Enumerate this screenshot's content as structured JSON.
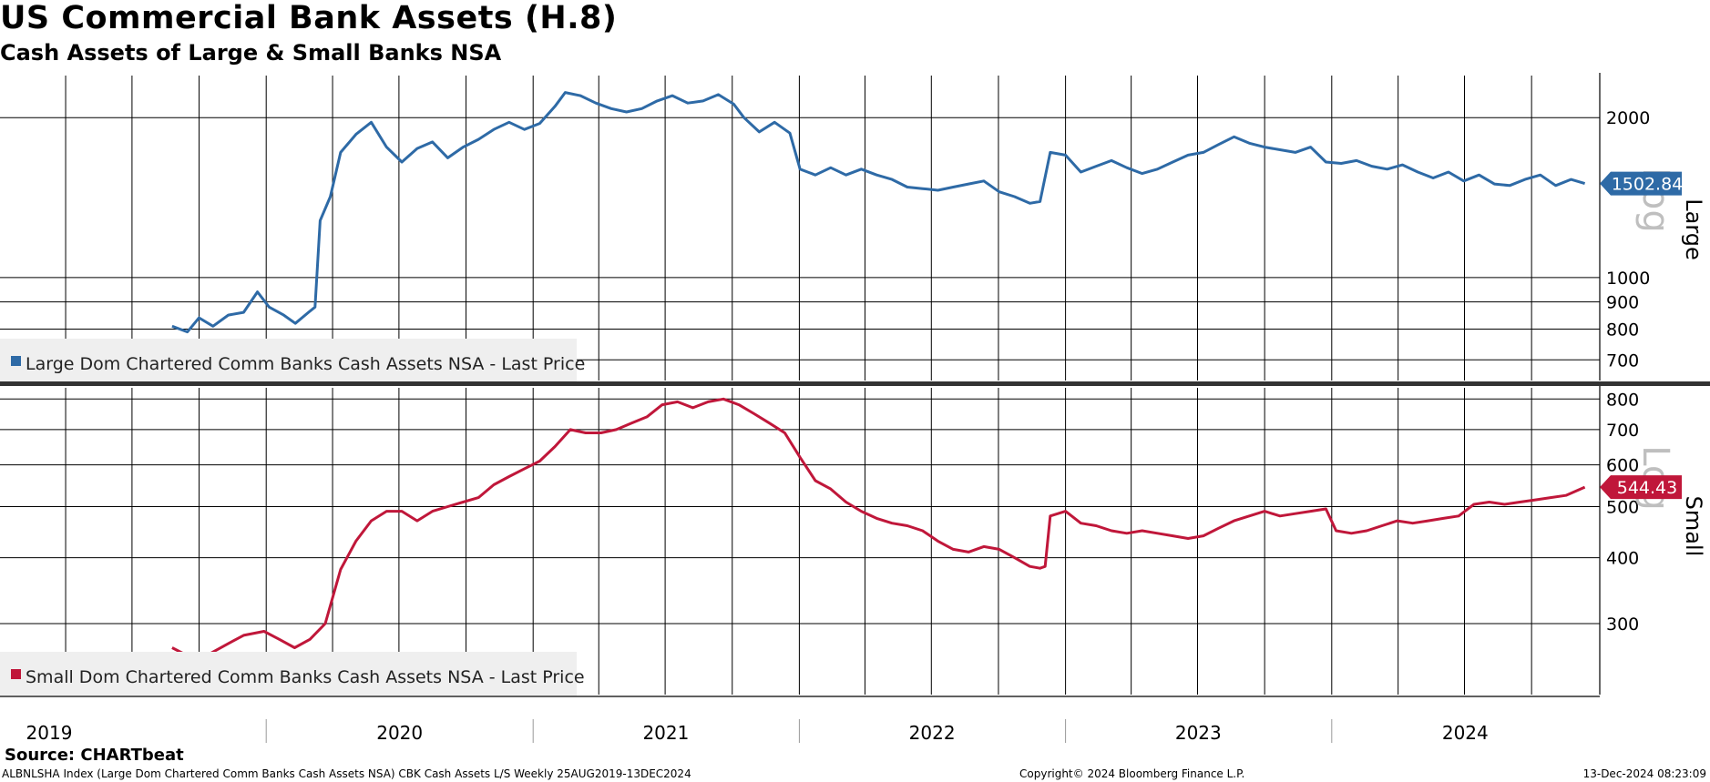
{
  "title": "US Commercial Bank Assets (H.8)",
  "subtitle": "Cash Assets of Large & Small Banks NSA",
  "source": "Source: CHARTbeat",
  "footer": {
    "left": "ALBNLSHA Index (Large Dom Chartered Comm Banks Cash Assets NSA) CBK Cash Assets L/S  Weekly 25AUG2019-13DEC2024",
    "middle": "Copyright© 2024 Bloomberg Finance L.P.",
    "right": "13-Dec-2024 08:23:09"
  },
  "colors": {
    "large": "#2e6aa6",
    "small": "#c0173a"
  },
  "chart_data": [
    {
      "type": "line",
      "panel": "top",
      "axis_title": "Large",
      "scale": "log",
      "scale_watermark": "Log",
      "ylim": [
        640,
        2400
      ],
      "yticks": [
        700,
        800,
        900,
        1000,
        2000
      ],
      "last_value_label": "1502.84",
      "legend": "Large Dom Chartered Comm Banks Cash Assets NSA - Last Price",
      "legend_position": "bottom-left",
      "series": [
        {
          "name": "Large Dom Chartered Comm Banks Cash Assets NSA - Last Price",
          "points": [
            [
              "2019-08-25",
              810
            ],
            [
              "2019-09-15",
              790
            ],
            [
              "2019-10-01",
              840
            ],
            [
              "2019-10-20",
              810
            ],
            [
              "2019-11-10",
              850
            ],
            [
              "2019-12-01",
              860
            ],
            [
              "2019-12-20",
              940
            ],
            [
              "2020-01-05",
              880
            ],
            [
              "2020-01-25",
              850
            ],
            [
              "2020-02-10",
              820
            ],
            [
              "2020-02-28",
              860
            ],
            [
              "2020-03-08",
              880
            ],
            [
              "2020-03-15",
              1280
            ],
            [
              "2020-03-29",
              1420
            ],
            [
              "2020-04-12",
              1720
            ],
            [
              "2020-05-03",
              1860
            ],
            [
              "2020-05-24",
              1960
            ],
            [
              "2020-06-14",
              1760
            ],
            [
              "2020-07-05",
              1650
            ],
            [
              "2020-07-26",
              1750
            ],
            [
              "2020-08-16",
              1800
            ],
            [
              "2020-09-06",
              1680
            ],
            [
              "2020-09-27",
              1760
            ],
            [
              "2020-10-18",
              1820
            ],
            [
              "2020-11-08",
              1900
            ],
            [
              "2020-11-29",
              1960
            ],
            [
              "2020-12-20",
              1900
            ],
            [
              "2021-01-10",
              1950
            ],
            [
              "2021-01-31",
              2100
            ],
            [
              "2021-02-14",
              2230
            ],
            [
              "2021-03-07",
              2200
            ],
            [
              "2021-03-28",
              2130
            ],
            [
              "2021-04-18",
              2080
            ],
            [
              "2021-05-09",
              2050
            ],
            [
              "2021-05-30",
              2080
            ],
            [
              "2021-06-20",
              2150
            ],
            [
              "2021-07-11",
              2200
            ],
            [
              "2021-08-01",
              2130
            ],
            [
              "2021-08-22",
              2150
            ],
            [
              "2021-09-12",
              2210
            ],
            [
              "2021-10-03",
              2120
            ],
            [
              "2021-10-17",
              2000
            ],
            [
              "2021-11-07",
              1880
            ],
            [
              "2021-11-28",
              1960
            ],
            [
              "2021-12-19",
              1870
            ],
            [
              "2022-01-02",
              1600
            ],
            [
              "2022-01-23",
              1560
            ],
            [
              "2022-02-13",
              1610
            ],
            [
              "2022-03-06",
              1560
            ],
            [
              "2022-03-27",
              1600
            ],
            [
              "2022-04-17",
              1560
            ],
            [
              "2022-05-08",
              1530
            ],
            [
              "2022-05-29",
              1480
            ],
            [
              "2022-06-19",
              1470
            ],
            [
              "2022-07-10",
              1460
            ],
            [
              "2022-07-31",
              1480
            ],
            [
              "2022-08-21",
              1500
            ],
            [
              "2022-09-11",
              1520
            ],
            [
              "2022-10-02",
              1450
            ],
            [
              "2022-10-23",
              1420
            ],
            [
              "2022-11-13",
              1380
            ],
            [
              "2022-11-27",
              1390
            ],
            [
              "2022-12-11",
              1720
            ],
            [
              "2023-01-01",
              1700
            ],
            [
              "2023-01-22",
              1580
            ],
            [
              "2023-02-12",
              1620
            ],
            [
              "2023-03-05",
              1660
            ],
            [
              "2023-03-26",
              1610
            ],
            [
              "2023-04-16",
              1570
            ],
            [
              "2023-05-07",
              1600
            ],
            [
              "2023-05-28",
              1650
            ],
            [
              "2023-06-18",
              1700
            ],
            [
              "2023-07-09",
              1720
            ],
            [
              "2023-07-30",
              1780
            ],
            [
              "2023-08-20",
              1840
            ],
            [
              "2023-09-10",
              1790
            ],
            [
              "2023-10-01",
              1760
            ],
            [
              "2023-10-22",
              1740
            ],
            [
              "2023-11-12",
              1720
            ],
            [
              "2023-12-03",
              1760
            ],
            [
              "2023-12-24",
              1650
            ],
            [
              "2024-01-14",
              1640
            ],
            [
              "2024-02-04",
              1660
            ],
            [
              "2024-02-25",
              1620
            ],
            [
              "2024-03-17",
              1600
            ],
            [
              "2024-04-07",
              1630
            ],
            [
              "2024-04-28",
              1580
            ],
            [
              "2024-05-19",
              1540
            ],
            [
              "2024-06-09",
              1580
            ],
            [
              "2024-06-30",
              1520
            ],
            [
              "2024-07-21",
              1560
            ],
            [
              "2024-08-11",
              1500
            ],
            [
              "2024-09-01",
              1490
            ],
            [
              "2024-09-22",
              1530
            ],
            [
              "2024-10-13",
              1560
            ],
            [
              "2024-11-03",
              1490
            ],
            [
              "2024-11-24",
              1530
            ],
            [
              "2024-12-13",
              1502.84
            ]
          ]
        }
      ]
    },
    {
      "type": "line",
      "panel": "bottom",
      "axis_title": "Small",
      "scale": "log",
      "scale_watermark": "Log",
      "ylim": [
        220,
        840
      ],
      "yticks": [
        300,
        400,
        500,
        600,
        700,
        800
      ],
      "last_value_label": "544.43",
      "legend": "Small Dom Chartered Comm Banks Cash Assets NSA - Last Price",
      "legend_position": "bottom-left",
      "series": [
        {
          "name": "Small Dom Chartered Comm Banks Cash Assets NSA - Last Price",
          "points": [
            [
              "2019-08-25",
              270
            ],
            [
              "2019-09-29",
              255
            ],
            [
              "2019-10-20",
              265
            ],
            [
              "2019-11-10",
              275
            ],
            [
              "2019-12-01",
              285
            ],
            [
              "2019-12-29",
              290
            ],
            [
              "2020-01-19",
              280
            ],
            [
              "2020-02-09",
              270
            ],
            [
              "2020-03-01",
              280
            ],
            [
              "2020-03-22",
              300
            ],
            [
              "2020-04-12",
              380
            ],
            [
              "2020-05-03",
              430
            ],
            [
              "2020-05-24",
              470
            ],
            [
              "2020-06-14",
              490
            ],
            [
              "2020-07-05",
              490
            ],
            [
              "2020-07-26",
              470
            ],
            [
              "2020-08-16",
              490
            ],
            [
              "2020-09-06",
              500
            ],
            [
              "2020-09-27",
              510
            ],
            [
              "2020-10-18",
              520
            ],
            [
              "2020-11-08",
              550
            ],
            [
              "2020-11-29",
              570
            ],
            [
              "2020-12-20",
              590
            ],
            [
              "2021-01-10",
              610
            ],
            [
              "2021-01-31",
              650
            ],
            [
              "2021-02-21",
              700
            ],
            [
              "2021-03-14",
              690
            ],
            [
              "2021-04-04",
              690
            ],
            [
              "2021-04-25",
              700
            ],
            [
              "2021-05-16",
              720
            ],
            [
              "2021-06-06",
              740
            ],
            [
              "2021-06-27",
              780
            ],
            [
              "2021-07-18",
              790
            ],
            [
              "2021-08-08",
              770
            ],
            [
              "2021-08-29",
              790
            ],
            [
              "2021-09-19",
              800
            ],
            [
              "2021-10-10",
              780
            ],
            [
              "2021-10-31",
              750
            ],
            [
              "2021-11-21",
              720
            ],
            [
              "2021-12-12",
              690
            ],
            [
              "2022-01-02",
              620
            ],
            [
              "2022-01-23",
              560
            ],
            [
              "2022-02-13",
              540
            ],
            [
              "2022-03-06",
              510
            ],
            [
              "2022-03-27",
              490
            ],
            [
              "2022-04-17",
              475
            ],
            [
              "2022-05-08",
              465
            ],
            [
              "2022-05-29",
              460
            ],
            [
              "2022-06-19",
              450
            ],
            [
              "2022-07-10",
              430
            ],
            [
              "2022-07-31",
              415
            ],
            [
              "2022-08-21",
              410
            ],
            [
              "2022-09-11",
              420
            ],
            [
              "2022-10-02",
              415
            ],
            [
              "2022-10-23",
              400
            ],
            [
              "2022-11-13",
              385
            ],
            [
              "2022-11-27",
              382
            ],
            [
              "2022-12-04",
              385
            ],
            [
              "2022-12-11",
              480
            ],
            [
              "2023-01-01",
              490
            ],
            [
              "2023-01-22",
              465
            ],
            [
              "2023-02-12",
              460
            ],
            [
              "2023-03-05",
              450
            ],
            [
              "2023-03-26",
              445
            ],
            [
              "2023-04-16",
              450
            ],
            [
              "2023-05-07",
              445
            ],
            [
              "2023-05-28",
              440
            ],
            [
              "2023-06-18",
              435
            ],
            [
              "2023-07-09",
              440
            ],
            [
              "2023-07-30",
              455
            ],
            [
              "2023-08-20",
              470
            ],
            [
              "2023-09-10",
              480
            ],
            [
              "2023-10-01",
              490
            ],
            [
              "2023-10-22",
              480
            ],
            [
              "2023-11-12",
              485
            ],
            [
              "2023-12-03",
              490
            ],
            [
              "2023-12-24",
              495
            ],
            [
              "2024-01-07",
              450
            ],
            [
              "2024-01-28",
              445
            ],
            [
              "2024-02-18",
              450
            ],
            [
              "2024-03-10",
              460
            ],
            [
              "2024-03-31",
              470
            ],
            [
              "2024-04-21",
              465
            ],
            [
              "2024-05-12",
              470
            ],
            [
              "2024-06-02",
              475
            ],
            [
              "2024-06-23",
              480
            ],
            [
              "2024-07-14",
              505
            ],
            [
              "2024-08-04",
              510
            ],
            [
              "2024-08-25",
              505
            ],
            [
              "2024-09-15",
              510
            ],
            [
              "2024-10-06",
              515
            ],
            [
              "2024-10-27",
              520
            ],
            [
              "2024-11-17",
              525
            ],
            [
              "2024-12-13",
              544.43
            ]
          ]
        }
      ]
    }
  ],
  "x_axis": {
    "xlim": [
      "2019-01-01",
      "2024-12-31"
    ],
    "tick_labels": [
      "2019",
      "2020",
      "2021",
      "2022",
      "2023",
      "2024"
    ]
  }
}
